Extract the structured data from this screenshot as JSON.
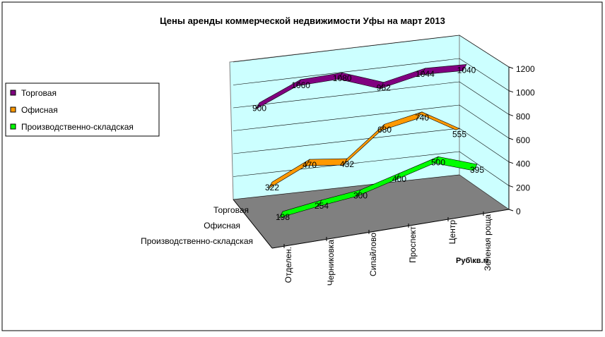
{
  "chart_data": {
    "type": "line",
    "style": "3d-line",
    "title": "Цены аренды коммерческой недвижимости Уфы на март 2013",
    "categories": [
      "Отделен.",
      "Черниковка",
      "Сипайлово",
      "Проспект",
      "Центр",
      "Зеленая роща"
    ],
    "series": [
      {
        "name": "Торговая",
        "color": "#800080",
        "values": [
          900,
          1060,
          1080,
          962,
          1044,
          1040
        ]
      },
      {
        "name": "Офисная",
        "color": "#FF9900",
        "values": [
          322,
          470,
          432,
          680,
          740,
          555
        ]
      },
      {
        "name": "Производственно-складская",
        "color": "#00FF00",
        "values": [
          198,
          254,
          300,
          400,
          500,
          395
        ]
      }
    ],
    "ylim": [
      0,
      1200
    ],
    "yticks": [
      "0",
      "200",
      "400",
      "600",
      "800",
      "1000",
      "1200"
    ],
    "yticks_values": [
      0,
      200,
      400,
      600,
      800,
      1000,
      1200
    ],
    "zlabel": "Руб\\кв.м.",
    "depth_labels": [
      "Торговая",
      "Офисная",
      "Производственно-складская"
    ],
    "legend_position": "left",
    "grid": true,
    "wall_color": "#CCFFFF",
    "floor_color": "#808080"
  }
}
